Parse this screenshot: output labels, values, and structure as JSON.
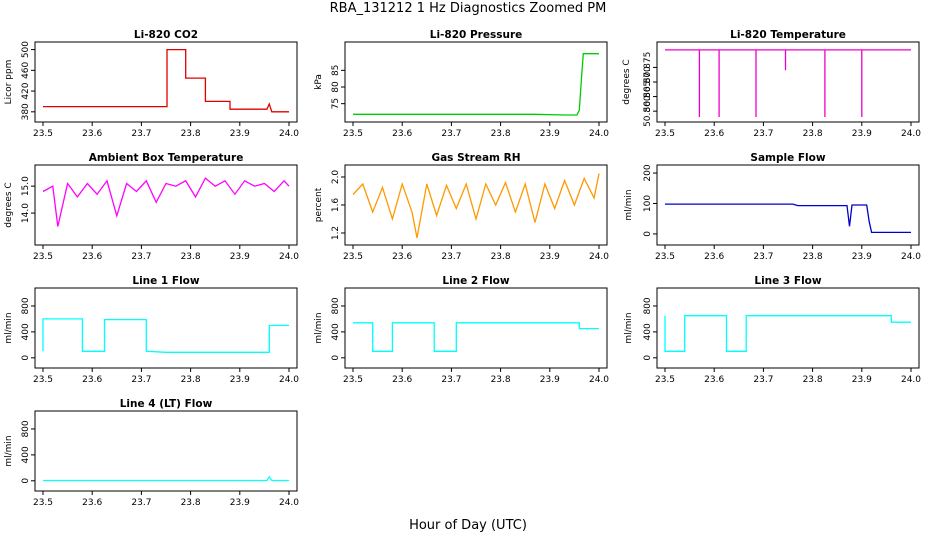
{
  "figure": {
    "title": "RBA_131212  1 Hz Diagnostics Zoomed PM",
    "xlabel": "Hour of Day (UTC)"
  },
  "chart_data": [
    {
      "type": "line",
      "title": "Li-820 CO2",
      "ylabel": "Licor ppm",
      "color": "#e00000",
      "xlim": [
        23.5,
        24.0
      ],
      "ylim": [
        370,
        505
      ],
      "xticks": [
        "23.5",
        "23.6",
        "23.7",
        "23.8",
        "23.9",
        "24.0"
      ],
      "xtick_values": [
        23.5,
        23.6,
        23.7,
        23.8,
        23.9,
        24.0
      ],
      "yticks": [
        "380",
        "420",
        "460",
        "500"
      ],
      "ytick_values": [
        380,
        420,
        460,
        500
      ],
      "series": [
        {
          "name": "CO2",
          "x": [
            23.5,
            23.752,
            23.752,
            23.79,
            23.79,
            23.83,
            23.83,
            23.88,
            23.88,
            23.955,
            23.96,
            23.965,
            24.0
          ],
          "y": [
            390,
            390,
            500,
            500,
            445,
            445,
            400,
            400,
            385,
            385,
            395,
            380,
            380
          ]
        }
      ]
    },
    {
      "type": "line",
      "title": "Li-820 Pressure",
      "ylabel": "kPa",
      "color": "#00cc00",
      "xlim": [
        23.5,
        24.0
      ],
      "ylim": [
        71,
        92
      ],
      "xticks": [
        "23.5",
        "23.6",
        "23.7",
        "23.8",
        "23.9",
        "24.0"
      ],
      "xtick_values": [
        23.5,
        23.6,
        23.7,
        23.8,
        23.9,
        24.0
      ],
      "yticks": [
        "75",
        "80",
        "85"
      ],
      "ytick_values": [
        75,
        80,
        85
      ],
      "series": [
        {
          "name": "Pressure",
          "x": [
            23.5,
            23.87,
            23.93,
            23.955,
            23.96,
            23.965,
            23.968,
            24.0
          ],
          "y": [
            71.8,
            71.8,
            71.6,
            71.6,
            73,
            84,
            90,
            90
          ]
        }
      ]
    },
    {
      "type": "line",
      "title": "Li-820 Temperature",
      "ylabel": "degrees C",
      "color": "#ee00cc",
      "xlim": [
        23.5,
        24.0
      ],
      "ylim": [
        50.858,
        50.882
      ],
      "xticks": [
        "23.5",
        "23.6",
        "23.7",
        "23.8",
        "23.9",
        "24.0"
      ],
      "xtick_values": [
        23.5,
        23.6,
        23.7,
        23.8,
        23.9,
        24.0
      ],
      "yticks": [
        "50.860",
        "50.865",
        "50.870",
        "50.875"
      ],
      "ytick_values": [
        50.86,
        50.865,
        50.87,
        50.875
      ],
      "series": [
        {
          "name": "Temperature",
          "x": [
            23.5,
            23.57,
            23.57,
            23.57,
            23.61,
            23.61,
            23.61,
            23.685,
            23.685,
            23.685,
            23.745,
            23.745,
            23.745,
            23.825,
            23.825,
            23.825,
            23.9,
            23.9,
            23.9,
            24.0
          ],
          "y": [
            50.881,
            50.881,
            50.858,
            50.881,
            50.881,
            50.858,
            50.881,
            50.881,
            50.858,
            50.881,
            50.881,
            50.874,
            50.881,
            50.881,
            50.858,
            50.881,
            50.881,
            50.858,
            50.881,
            50.881
          ]
        }
      ]
    },
    {
      "type": "line",
      "title": "Ambient Box Temperature",
      "ylabel": "degrees C",
      "color": "#ff00ff",
      "xlim": [
        23.5,
        24.0
      ],
      "ylim": [
        13.0,
        15.6
      ],
      "xticks": [
        "23.5",
        "23.6",
        "23.7",
        "23.8",
        "23.9",
        "24.0"
      ],
      "xtick_values": [
        23.5,
        23.6,
        23.7,
        23.8,
        23.9,
        24.0
      ],
      "yticks": [
        "14.0",
        "15.0"
      ],
      "ytick_values": [
        14.0,
        15.0
      ],
      "series": [
        {
          "name": "Box temperature",
          "x": [
            23.5,
            23.52,
            23.53,
            23.55,
            23.57,
            23.59,
            23.61,
            23.63,
            23.65,
            23.67,
            23.69,
            23.71,
            23.73,
            23.75,
            23.77,
            23.79,
            23.81,
            23.83,
            23.85,
            23.87,
            23.89,
            23.91,
            23.93,
            23.95,
            23.97,
            23.99,
            24.0
          ],
          "y": [
            14.8,
            15.0,
            13.5,
            15.1,
            14.6,
            15.1,
            14.7,
            15.2,
            13.9,
            15.1,
            14.8,
            15.2,
            14.4,
            15.1,
            15.0,
            15.2,
            14.6,
            15.3,
            15.0,
            15.2,
            14.7,
            15.2,
            15.0,
            15.1,
            14.8,
            15.2,
            15.0
          ]
        }
      ]
    },
    {
      "type": "line",
      "title": "Gas Stream RH",
      "ylabel": "percent",
      "color": "#ff9900",
      "xlim": [
        23.5,
        24.0
      ],
      "ylim": [
        1.1,
        2.1
      ],
      "xticks": [
        "23.5",
        "23.6",
        "23.7",
        "23.8",
        "23.9",
        "24.0"
      ],
      "xtick_values": [
        23.5,
        23.6,
        23.7,
        23.8,
        23.9,
        24.0
      ],
      "yticks": [
        "1.2",
        "1.6",
        "2.0"
      ],
      "ytick_values": [
        1.2,
        1.6,
        2.0
      ],
      "series": [
        {
          "name": "RH",
          "x": [
            23.5,
            23.52,
            23.54,
            23.56,
            23.58,
            23.6,
            23.62,
            23.63,
            23.65,
            23.67,
            23.69,
            23.71,
            23.73,
            23.75,
            23.77,
            23.79,
            23.81,
            23.83,
            23.85,
            23.87,
            23.89,
            23.91,
            23.93,
            23.95,
            23.97,
            23.99,
            24.0
          ],
          "y": [
            1.75,
            1.9,
            1.5,
            1.85,
            1.4,
            1.9,
            1.5,
            1.13,
            1.9,
            1.45,
            1.88,
            1.55,
            1.9,
            1.4,
            1.9,
            1.6,
            1.92,
            1.5,
            1.9,
            1.35,
            1.9,
            1.55,
            1.95,
            1.6,
            1.98,
            1.7,
            2.05
          ]
        }
      ]
    },
    {
      "type": "line",
      "title": "Sample Flow",
      "ylabel": "ml/min",
      "color": "#0000cc",
      "xlim": [
        23.5,
        24.0
      ],
      "ylim": [
        -20,
        210
      ],
      "xticks": [
        "23.5",
        "23.6",
        "23.7",
        "23.8",
        "23.9",
        "24.0"
      ],
      "xtick_values": [
        23.5,
        23.6,
        23.7,
        23.8,
        23.9,
        24.0
      ],
      "yticks": [
        "0",
        "100",
        "200"
      ],
      "ytick_values": [
        0,
        100,
        200
      ],
      "series": [
        {
          "name": "Sample flow",
          "x": [
            23.5,
            23.76,
            23.77,
            23.87,
            23.875,
            23.88,
            23.885,
            23.91,
            23.915,
            23.92,
            24.0
          ],
          "y": [
            98,
            98,
            93,
            93,
            25,
            95,
            95,
            95,
            40,
            5,
            5
          ]
        }
      ]
    },
    {
      "type": "line",
      "title": "Line 1 Flow",
      "ylabel": "ml/min",
      "color": "#00ffff",
      "xlim": [
        23.5,
        24.0
      ],
      "ylim": [
        -80,
        1000
      ],
      "xticks": [
        "23.5",
        "23.6",
        "23.7",
        "23.8",
        "23.9",
        "24.0"
      ],
      "xtick_values": [
        23.5,
        23.6,
        23.7,
        23.8,
        23.9,
        24.0
      ],
      "yticks": [
        "0",
        "400",
        "800"
      ],
      "ytick_values": [
        0,
        400,
        800
      ],
      "series": [
        {
          "name": "Line 1",
          "x": [
            23.5,
            23.5,
            23.58,
            23.58,
            23.625,
            23.625,
            23.71,
            23.71,
            23.75,
            23.96,
            23.96,
            24.0
          ],
          "y": [
            100,
            600,
            600,
            100,
            100,
            590,
            590,
            100,
            85,
            85,
            500,
            500
          ]
        }
      ]
    },
    {
      "type": "line",
      "title": "Line 2 Flow",
      "ylabel": "ml/min",
      "color": "#00ffff",
      "xlim": [
        23.5,
        24.0
      ],
      "ylim": [
        -80,
        1000
      ],
      "xticks": [
        "23.5",
        "23.6",
        "23.7",
        "23.8",
        "23.9",
        "24.0"
      ],
      "xtick_values": [
        23.5,
        23.6,
        23.7,
        23.8,
        23.9,
        24.0
      ],
      "yticks": [
        "0",
        "400",
        "800"
      ],
      "ytick_values": [
        0,
        400,
        800
      ],
      "series": [
        {
          "name": "Line 2",
          "x": [
            23.5,
            23.54,
            23.54,
            23.58,
            23.58,
            23.665,
            23.665,
            23.71,
            23.71,
            23.96,
            23.96,
            24.0
          ],
          "y": [
            540,
            540,
            100,
            100,
            540,
            540,
            100,
            100,
            540,
            540,
            450,
            450
          ]
        }
      ]
    },
    {
      "type": "line",
      "title": "Line 3 Flow",
      "ylabel": "ml/min",
      "color": "#00ffff",
      "xlim": [
        23.5,
        24.0
      ],
      "ylim": [
        -80,
        1000
      ],
      "xticks": [
        "23.5",
        "23.6",
        "23.7",
        "23.8",
        "23.9",
        "24.0"
      ],
      "xtick_values": [
        23.5,
        23.6,
        23.7,
        23.8,
        23.9,
        24.0
      ],
      "yticks": [
        "0",
        "400",
        "800"
      ],
      "ytick_values": [
        0,
        400,
        800
      ],
      "series": [
        {
          "name": "Line 3",
          "x": [
            23.5,
            23.5,
            23.5,
            23.54,
            23.54,
            23.625,
            23.625,
            23.665,
            23.665,
            23.96,
            23.96,
            24.0
          ],
          "y": [
            650,
            100,
            100,
            100,
            650,
            650,
            100,
            100,
            650,
            650,
            550,
            550
          ]
        }
      ]
    },
    {
      "type": "line",
      "title": "Line 4 (LT) Flow",
      "ylabel": "ml/min",
      "color": "#00ffff",
      "xlim": [
        23.5,
        24.0
      ],
      "ylim": [
        -80,
        1000
      ],
      "xticks": [
        "23.5",
        "23.6",
        "23.7",
        "23.8",
        "23.9",
        "24.0"
      ],
      "xtick_values": [
        23.5,
        23.6,
        23.7,
        23.8,
        23.9,
        24.0
      ],
      "yticks": [
        "0",
        "400",
        "800"
      ],
      "ytick_values": [
        0,
        400,
        800
      ],
      "series": [
        {
          "name": "Line 4",
          "x": [
            23.5,
            23.955,
            23.96,
            23.965,
            24.0
          ],
          "y": [
            5,
            5,
            60,
            5,
            5
          ]
        }
      ]
    }
  ]
}
